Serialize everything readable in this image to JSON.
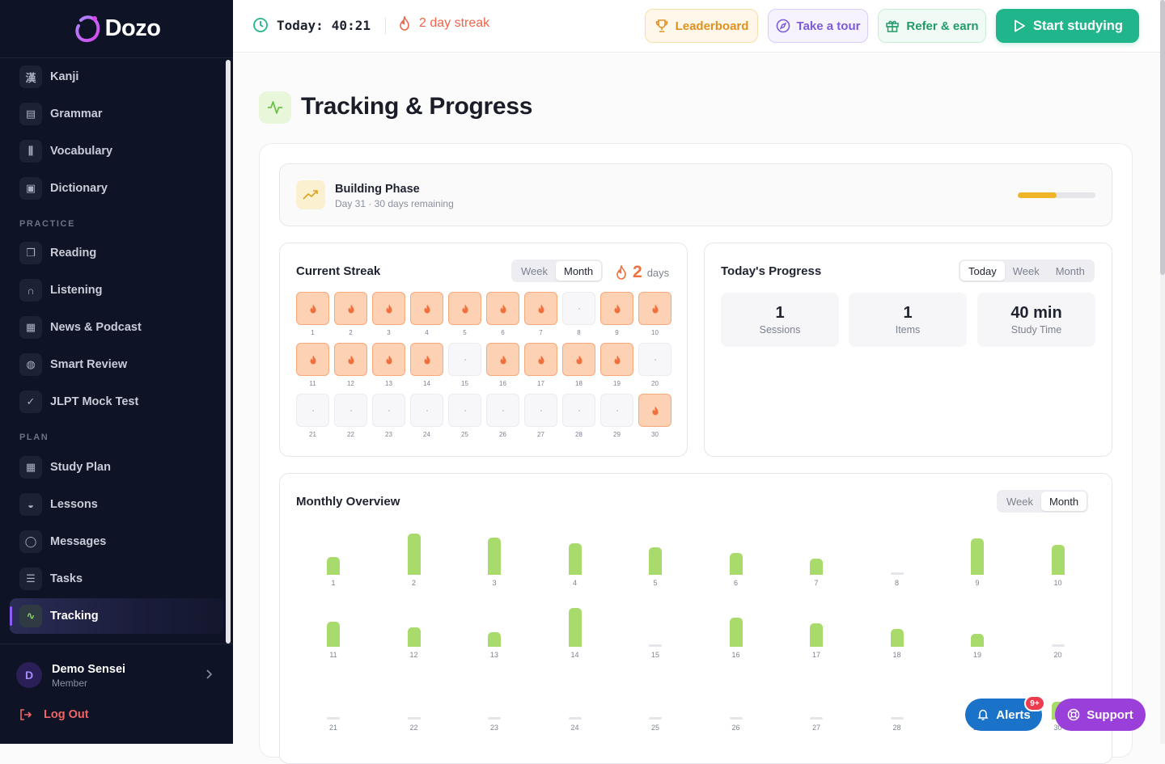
{
  "app": {
    "brand": "Dozo",
    "accent": "#8b5cf6"
  },
  "sidebar": {
    "items_top": [
      {
        "label": "Kanji",
        "icon": "kanji-icon"
      },
      {
        "label": "Grammar",
        "icon": "document-icon"
      },
      {
        "label": "Vocabulary",
        "icon": "library-icon"
      },
      {
        "label": "Dictionary",
        "icon": "book-icon"
      }
    ],
    "practice_header": "PRACTICE",
    "practice": [
      {
        "label": "Reading",
        "icon": "open-book-icon"
      },
      {
        "label": "Listening",
        "icon": "headphones-icon"
      },
      {
        "label": "News & Podcast",
        "icon": "newspaper-icon"
      },
      {
        "label": "Smart Review",
        "icon": "brain-icon"
      },
      {
        "label": "JLPT Mock Test",
        "icon": "clipboard-icon"
      }
    ],
    "plan_header": "PLAN",
    "plan": [
      {
        "label": "Study Plan",
        "icon": "calendar-icon"
      },
      {
        "label": "Lessons",
        "icon": "graduation-cap-icon"
      },
      {
        "label": "Messages",
        "icon": "chat-icon"
      },
      {
        "label": "Tasks",
        "icon": "clipboard-list-icon"
      },
      {
        "label": "Tracking",
        "icon": "activity-icon",
        "active": true
      }
    ],
    "user": {
      "initial": "D",
      "name": "Demo Sensei",
      "role": "Member"
    },
    "logout": "Log Out"
  },
  "topbar": {
    "today_label": "Today:",
    "today_time": "40:21",
    "streak": "2 day streak",
    "leaderboard": "Leaderboard",
    "tour": "Take a tour",
    "refer": "Refer & earn",
    "start": "Start studying"
  },
  "page": {
    "title": "Tracking & Progress"
  },
  "phase": {
    "title": "Building Phase",
    "subtitle": "Day 31 · 30 days remaining",
    "progress": 0.5,
    "color": "#f0b429"
  },
  "streak_card": {
    "title": "Current Streak",
    "tabs": [
      "Week",
      "Month"
    ],
    "active_tab": "Month",
    "count": "2",
    "unit": "days",
    "days": [
      {
        "d": "1",
        "on": true
      },
      {
        "d": "2",
        "on": true
      },
      {
        "d": "3",
        "on": true
      },
      {
        "d": "4",
        "on": true
      },
      {
        "d": "5",
        "on": true
      },
      {
        "d": "6",
        "on": true
      },
      {
        "d": "7",
        "on": true
      },
      {
        "d": "8",
        "on": false
      },
      {
        "d": "9",
        "on": true
      },
      {
        "d": "10",
        "on": true
      },
      {
        "d": "11",
        "on": true
      },
      {
        "d": "12",
        "on": true
      },
      {
        "d": "13",
        "on": true
      },
      {
        "d": "14",
        "on": true
      },
      {
        "d": "15",
        "on": false
      },
      {
        "d": "16",
        "on": true
      },
      {
        "d": "17",
        "on": true
      },
      {
        "d": "18",
        "on": true
      },
      {
        "d": "19",
        "on": true
      },
      {
        "d": "20",
        "on": false
      },
      {
        "d": "21",
        "on": false
      },
      {
        "d": "22",
        "on": false
      },
      {
        "d": "23",
        "on": false
      },
      {
        "d": "24",
        "on": false
      },
      {
        "d": "25",
        "on": false
      },
      {
        "d": "26",
        "on": false
      },
      {
        "d": "27",
        "on": false
      },
      {
        "d": "28",
        "on": false
      },
      {
        "d": "29",
        "on": false
      },
      {
        "d": "30",
        "on": true
      }
    ]
  },
  "progress_card": {
    "title": "Today's Progress",
    "tabs": [
      "Today",
      "Week",
      "Month"
    ],
    "active_tab": "Today",
    "stats": [
      {
        "value": "1",
        "label": "Sessions"
      },
      {
        "value": "1",
        "label": "Items"
      },
      {
        "value": "40 min",
        "label": "Study Time"
      }
    ]
  },
  "overview": {
    "title": "Monthly Overview",
    "tabs": [
      "Week",
      "Month"
    ],
    "active_tab": "Month",
    "bar_color": "#a8db6c"
  },
  "chart_data": {
    "type": "bar",
    "categories": [
      "1",
      "2",
      "3",
      "4",
      "5",
      "6",
      "7",
      "8",
      "9",
      "10",
      "11",
      "12",
      "13",
      "14",
      "15",
      "16",
      "17",
      "18",
      "19",
      "20",
      "21",
      "22",
      "23",
      "24",
      "25",
      "26",
      "27",
      "28",
      "29",
      "30"
    ],
    "values": [
      22,
      50,
      45,
      38,
      33,
      26,
      20,
      0,
      44,
      36,
      30,
      24,
      18,
      47,
      0,
      35,
      28,
      22,
      16,
      0,
      0,
      0,
      0,
      0,
      0,
      0,
      0,
      0,
      0,
      22
    ],
    "title": "Monthly Overview",
    "xlabel": "",
    "ylabel": "",
    "ylim": [
      0,
      50
    ]
  },
  "fabs": {
    "alerts": "Alerts",
    "badge": "9+",
    "support": "Support"
  }
}
